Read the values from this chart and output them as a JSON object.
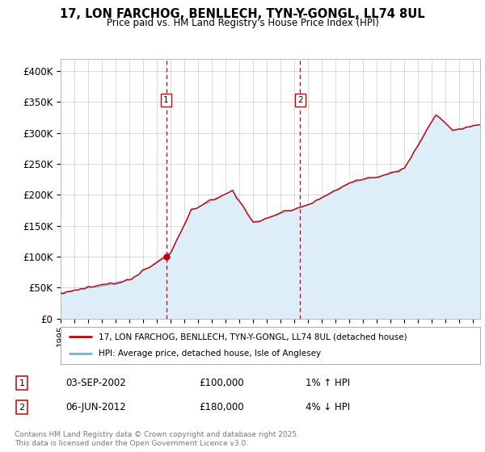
{
  "title": "17, LON FARCHOG, BENLLECH, TYN-Y-GONGL, LL74 8UL",
  "subtitle": "Price paid vs. HM Land Registry's House Price Index (HPI)",
  "ylabel_ticks": [
    "£0",
    "£50K",
    "£100K",
    "£150K",
    "£200K",
    "£250K",
    "£300K",
    "£350K",
    "£400K"
  ],
  "ytick_values": [
    0,
    50000,
    100000,
    150000,
    200000,
    250000,
    300000,
    350000,
    400000
  ],
  "ylim": [
    0,
    420000
  ],
  "xlim_start": 1995.0,
  "xlim_end": 2025.5,
  "sale1": {
    "date_num": 2002.67,
    "price": 100000,
    "label": "1",
    "date_str": "03-SEP-2002",
    "hpi_pct": "1%",
    "hpi_dir": "↑"
  },
  "sale2": {
    "date_num": 2012.42,
    "price": 180000,
    "label": "2",
    "date_str": "06-JUN-2012",
    "hpi_pct": "4%",
    "hpi_dir": "↓"
  },
  "line_color_price": "#cc0000",
  "line_color_hpi": "#7ab0d4",
  "fill_color_hpi": "#ddeef8",
  "vline_color": "#cc0000",
  "annotation_box_color": "#cc0000",
  "background_color": "#ffffff",
  "grid_color": "#cccccc",
  "legend_label1": "17, LON FARCHOG, BENLLECH, TYN-Y-GONGL, LL74 8UL (detached house)",
  "legend_label2": "HPI: Average price, detached house, Isle of Anglesey",
  "footnote1": "Contains HM Land Registry data © Crown copyright and database right 2025.",
  "footnote2": "This data is licensed under the Open Government Licence v3.0.",
  "table_row1": [
    "1",
    "03-SEP-2002",
    "£100,000",
    "1% ↑ HPI"
  ],
  "table_row2": [
    "2",
    "06-JUN-2012",
    "£180,000",
    "4% ↓ HPI"
  ]
}
